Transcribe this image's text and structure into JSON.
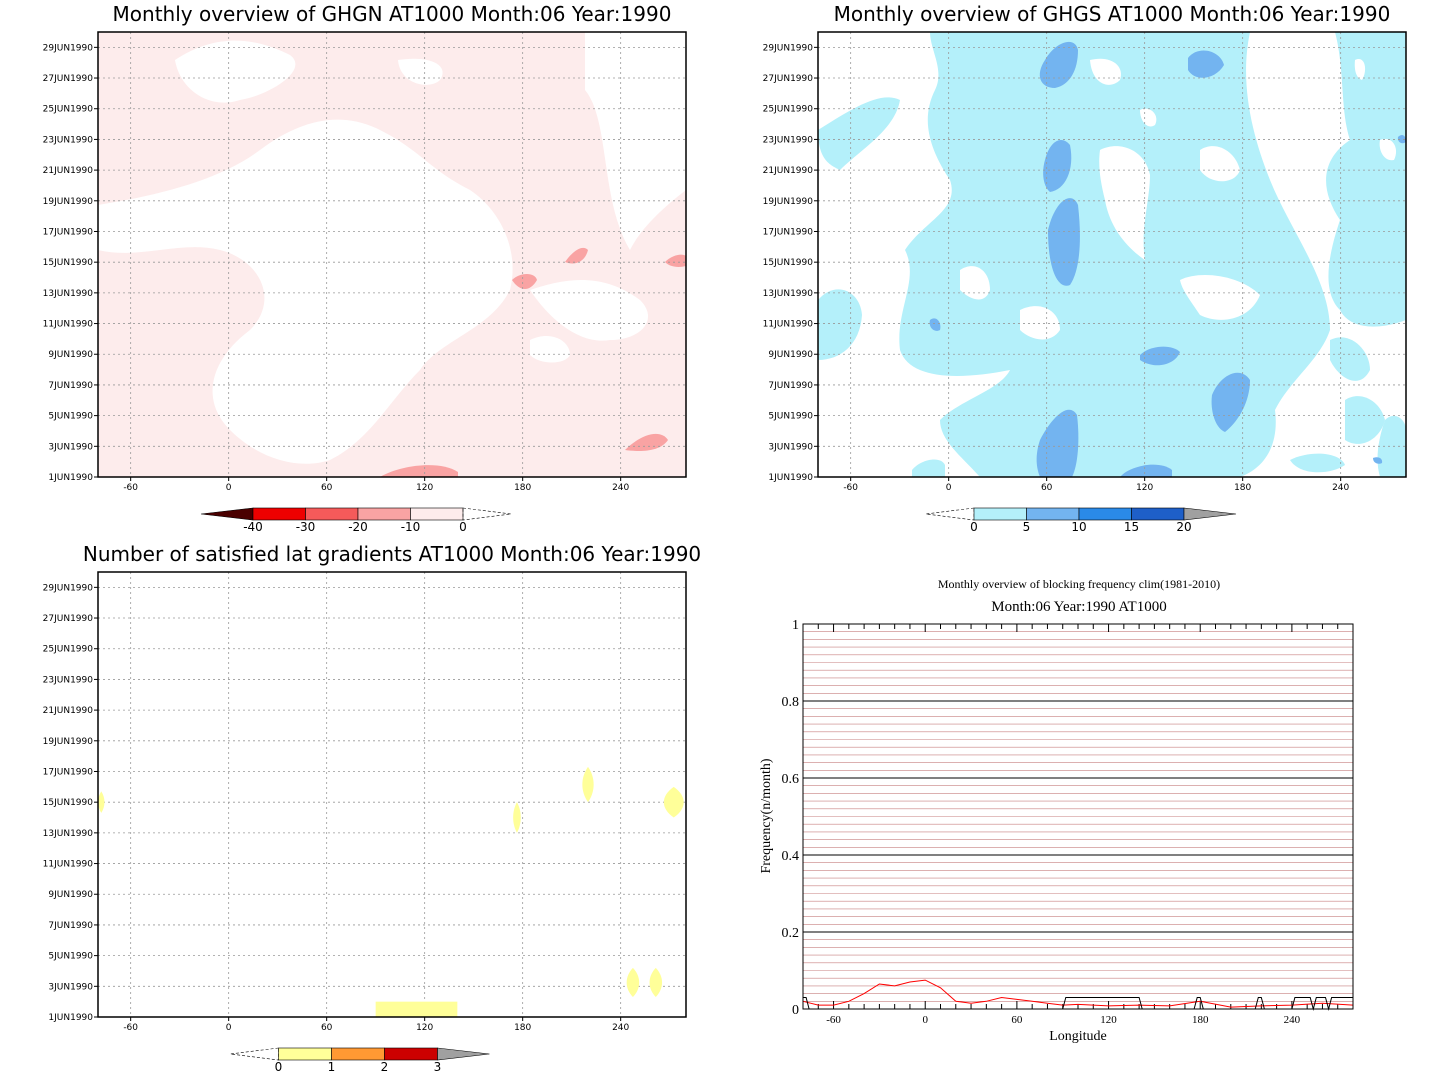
{
  "panels": {
    "ghgn": {
      "title": "Monthly overview of GHGN AT1000 Month:06 Year:1990",
      "xticks": [
        "-60",
        "0",
        "60",
        "120",
        "180",
        "240"
      ],
      "yticks": [
        "1JUN1990",
        "3JUN1990",
        "5JUN1990",
        "7JUN1990",
        "9JUN1990",
        "11JUN1990",
        "13JUN1990",
        "15JUN1990",
        "17JUN1990",
        "19JUN1990",
        "21JUN1990",
        "23JUN1990",
        "25JUN1990",
        "27JUN1990",
        "29JUN1990"
      ],
      "colorbar": {
        "ticks": [
          "-40",
          "-30",
          "-20",
          "-10",
          "0"
        ],
        "colors": [
          "#4a0000",
          "#ee0000",
          "#f55a5a",
          "#f9a3a3",
          "#fdecec"
        ]
      }
    },
    "ghgs": {
      "title": "Monthly overview of GHGS AT1000 Month:06 Year:1990",
      "xticks": [
        "-60",
        "0",
        "60",
        "120",
        "180",
        "240"
      ],
      "yticks": [
        "1JUN1990",
        "3JUN1990",
        "5JUN1990",
        "7JUN1990",
        "9JUN1990",
        "11JUN1990",
        "13JUN1990",
        "15JUN1990",
        "17JUN1990",
        "19JUN1990",
        "21JUN1990",
        "23JUN1990",
        "25JUN1990",
        "27JUN1990",
        "29JUN1990"
      ],
      "colorbar": {
        "ticks": [
          "0",
          "5",
          "10",
          "15",
          "20"
        ],
        "colors": [
          "#b4f0fa",
          "#73b4f0",
          "#2a8ae8",
          "#1e5fc8",
          "#a0a0a0"
        ]
      }
    },
    "nsat": {
      "title": "Number of satisfied lat gradients AT1000 Month:06 Year:1990",
      "xticks": [
        "-60",
        "0",
        "60",
        "120",
        "180",
        "240"
      ],
      "yticks": [
        "1JUN1990",
        "3JUN1990",
        "5JUN1990",
        "7JUN1990",
        "9JUN1990",
        "11JUN1990",
        "13JUN1990",
        "15JUN1990",
        "17JUN1990",
        "19JUN1990",
        "21JUN1990",
        "23JUN1990",
        "25JUN1990",
        "27JUN1990",
        "29JUN1990"
      ],
      "colorbar": {
        "ticks": [
          "0",
          "1",
          "2",
          "3"
        ],
        "colors": [
          "#ffff99",
          "#ff9933",
          "#cc0000",
          "#a0a0a0"
        ]
      }
    },
    "freq": {
      "title": "Monthly overview of blocking frequency clim(1981-2010)",
      "subtitle": "Month:06 Year:1990  AT1000",
      "xlabel": "Longitude",
      "ylabel": "Frequency(n/month)",
      "xticks": [
        "-60",
        "0",
        "60",
        "120",
        "180",
        "240"
      ],
      "yticks": [
        "0",
        "0.2",
        "0.4",
        "0.6",
        "0.8",
        "1"
      ]
    }
  },
  "chart_data": [
    {
      "type": "heatmap",
      "title": "Monthly overview of GHGN AT1000 Month:06 Year:1990",
      "x_range": [
        -80,
        280
      ],
      "y_range": [
        "1JUN1990",
        "30JUN1990"
      ],
      "levels": [
        -40,
        -30,
        -20,
        -10,
        0
      ],
      "level_colors": [
        "#4a0000",
        "#ee0000",
        "#f55a5a",
        "#f9a3a3",
        "#fdecec"
      ]
    },
    {
      "type": "heatmap",
      "title": "Monthly overview of GHGS AT1000 Month:06 Year:1990",
      "x_range": [
        -80,
        280
      ],
      "y_range": [
        "1JUN1990",
        "30JUN1990"
      ],
      "levels": [
        0,
        5,
        10,
        15,
        20
      ],
      "level_colors": [
        "#b4f0fa",
        "#73b4f0",
        "#2a8ae8",
        "#1e5fc8",
        "#a0a0a0"
      ]
    },
    {
      "type": "heatmap",
      "title": "Number of satisfied lat gradients AT1000 Month:06 Year:1990",
      "x_range": [
        -80,
        280
      ],
      "y_range": [
        "1JUN1990",
        "30JUN1990"
      ],
      "levels": [
        0,
        1,
        2,
        3
      ],
      "level_colors": [
        "#ffff99",
        "#ff9933",
        "#cc0000",
        "#a0a0a0"
      ],
      "regions": [
        {
          "lon": [
            90,
            140
          ],
          "day": [
            1,
            2
          ],
          "value": 1
        },
        {
          "lon": [
            243,
            252
          ],
          "day": [
            2.3,
            4.2
          ],
          "value": 1
        },
        {
          "lon": [
            257,
            266
          ],
          "day": [
            2.3,
            4.2
          ],
          "value": 1
        },
        {
          "lon": [
            174,
            179
          ],
          "day": [
            13,
            15
          ],
          "value": 1
        },
        {
          "lon": [
            216,
            224
          ],
          "day": [
            15,
            17.3
          ],
          "value": 1
        },
        {
          "lon": [
            265,
            280
          ],
          "day": [
            14,
            16
          ],
          "value": 1
        },
        {
          "lon": [
            -80,
            -76
          ],
          "day": [
            14.3,
            15.7
          ],
          "value": 1
        }
      ]
    },
    {
      "type": "line",
      "title": "Monthly overview of blocking frequency clim(1981-2010)",
      "subtitle": "Month:06 Year:1990  AT1000",
      "xlabel": "Longitude",
      "ylabel": "Frequency(n/month)",
      "xlim": [
        -80,
        280
      ],
      "ylim": [
        0,
        1
      ],
      "series": [
        {
          "color": "#ff0000",
          "x": [
            -80,
            -70,
            -60,
            -50,
            -40,
            -30,
            -20,
            -10,
            0,
            10,
            20,
            30,
            40,
            50,
            60,
            70,
            80,
            90,
            100,
            120,
            140,
            160,
            180,
            200,
            220,
            240,
            260,
            280
          ],
          "values": [
            0.02,
            0.01,
            0.01,
            0.02,
            0.04,
            0.065,
            0.06,
            0.07,
            0.075,
            0.055,
            0.02,
            0.015,
            0.02,
            0.03,
            0.025,
            0.02,
            0.015,
            0.01,
            0.012,
            0.008,
            0.01,
            0.008,
            0.02,
            0.005,
            0.008,
            0.01,
            0.015,
            0.01
          ]
        },
        {
          "color": "#000000",
          "x": [
            -80,
            -78,
            -76,
            -60,
            -40,
            90,
            92,
            140,
            142,
            176,
            178,
            180,
            182,
            216,
            218,
            220,
            222,
            240,
            242,
            244,
            246,
            248,
            250,
            252,
            254,
            256,
            258,
            260,
            262,
            264,
            266,
            268,
            280
          ],
          "values": [
            0.03,
            0.03,
            0,
            0,
            0,
            0,
            0.03,
            0.03,
            0,
            0,
            0.03,
            0.03,
            0,
            0,
            0.03,
            0.03,
            0,
            0,
            0.03,
            0.03,
            0.03,
            0.03,
            0.03,
            0.03,
            0,
            0.03,
            0.03,
            0.03,
            0.03,
            0,
            0.03,
            0.03,
            0.03
          ]
        }
      ]
    }
  ]
}
